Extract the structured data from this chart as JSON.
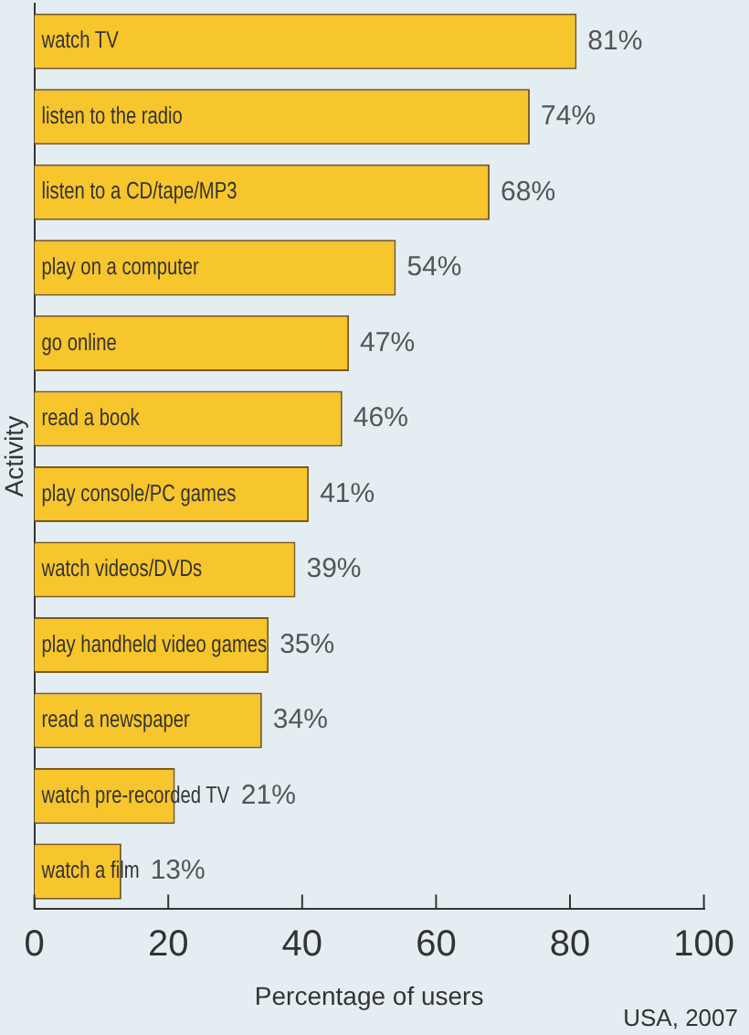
{
  "chart_data": {
    "type": "bar",
    "orientation": "horizontal",
    "xlabel": "Percentage of users",
    "ylabel": "Activity",
    "categories": [
      "watch TV",
      "listen to the radio",
      "listen to a CD/tape/MP3",
      "play on a computer",
      "go online",
      "read a book",
      "play console/PC games",
      "watch videos/DVDs",
      "play handheld video games",
      "read a newspaper",
      "watch pre-recorded TV",
      "watch a film"
    ],
    "values": [
      81,
      74,
      68,
      54,
      47,
      46,
      41,
      39,
      35,
      34,
      21,
      13
    ],
    "value_labels": [
      "81%",
      "74%",
      "68%",
      "54%",
      "47%",
      "46%",
      "41%",
      "39%",
      "35%",
      "34%",
      "21%",
      "13%"
    ],
    "color": "#f7c52c",
    "xlim": [
      0,
      100
    ],
    "xticks": [
      0,
      20,
      40,
      60,
      80,
      100
    ],
    "grid": false,
    "legend": false,
    "annotations": [
      "USA, 2007"
    ]
  }
}
